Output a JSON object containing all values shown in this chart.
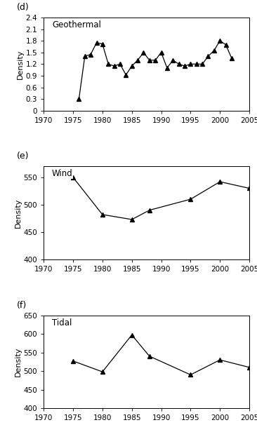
{
  "geothermal": {
    "label": "(d)",
    "legend": "Geothermal",
    "x": [
      1976,
      1977,
      1978,
      1979,
      1980,
      1981,
      1982,
      1983,
      1984,
      1985,
      1986,
      1987,
      1988,
      1989,
      1990,
      1991,
      1992,
      1993,
      1994,
      1995,
      1996,
      1997,
      1998,
      1999,
      2000,
      2001,
      2002
    ],
    "y": [
      0.3,
      1.4,
      1.45,
      1.75,
      1.72,
      1.2,
      1.15,
      1.2,
      0.92,
      1.15,
      1.3,
      1.5,
      1.3,
      1.3,
      1.5,
      1.1,
      1.3,
      1.2,
      1.15,
      1.2,
      1.2,
      1.2,
      1.4,
      1.55,
      1.8,
      1.7,
      1.35
    ],
    "ylim": [
      0,
      2.4
    ],
    "yticks": [
      0,
      0.3,
      0.6,
      0.9,
      1.2,
      1.5,
      1.8,
      2.1,
      2.4
    ],
    "yticklabels": [
      "0",
      "0.3",
      "0.6",
      "0.9",
      "1.2",
      "1.5",
      "1.8",
      "2.1",
      "2.4"
    ],
    "xlim": [
      1970,
      2005
    ],
    "xticks": [
      1970,
      1975,
      1980,
      1985,
      1990,
      1995,
      2000,
      2005
    ],
    "xticklabels": [
      "1970",
      "1975",
      "1980",
      "1985",
      "1990",
      "1995",
      "2000",
      "2005"
    ]
  },
  "wind": {
    "label": "(e)",
    "legend": "Wind",
    "x": [
      1975,
      1980,
      1985,
      1988,
      1995,
      2000,
      2005
    ],
    "y": [
      550,
      482,
      473,
      490,
      510,
      542,
      530
    ],
    "ylim": [
      400,
      570
    ],
    "yticks": [
      400,
      450,
      500,
      550
    ],
    "yticklabels": [
      "400",
      "450",
      "500",
      "550"
    ],
    "xlim": [
      1970,
      2005
    ],
    "xticks": [
      1970,
      1975,
      1980,
      1985,
      1990,
      1995,
      2000,
      2005
    ],
    "xticklabels": [
      "1970",
      "1975",
      "1980",
      "1985",
      "1990",
      "1995",
      "2000",
      "2005"
    ]
  },
  "tidal": {
    "label": "(f)",
    "legend": "Tidal",
    "x": [
      1975,
      1980,
      1985,
      1988,
      1995,
      2000,
      2005
    ],
    "y": [
      527,
      498,
      597,
      540,
      490,
      530,
      510
    ],
    "ylim": [
      400,
      650
    ],
    "yticks": [
      400,
      450,
      500,
      550,
      600,
      650
    ],
    "yticklabels": [
      "400",
      "450",
      "500",
      "550",
      "600",
      "650"
    ],
    "xlim": [
      1970,
      2005
    ],
    "xticks": [
      1970,
      1975,
      1980,
      1985,
      1990,
      1995,
      2000,
      2005
    ],
    "xticklabels": [
      "1970",
      "1975",
      "1980",
      "1985",
      "1990",
      "1995",
      "2000",
      "2005"
    ]
  },
  "marker": "^",
  "markersize": 4,
  "linewidth": 0.9,
  "color": "black",
  "ylabel": "Density",
  "ylabel_fontsize": 8,
  "label_fontsize": 9,
  "tick_fontsize": 7.5,
  "legend_fontsize": 8.5
}
